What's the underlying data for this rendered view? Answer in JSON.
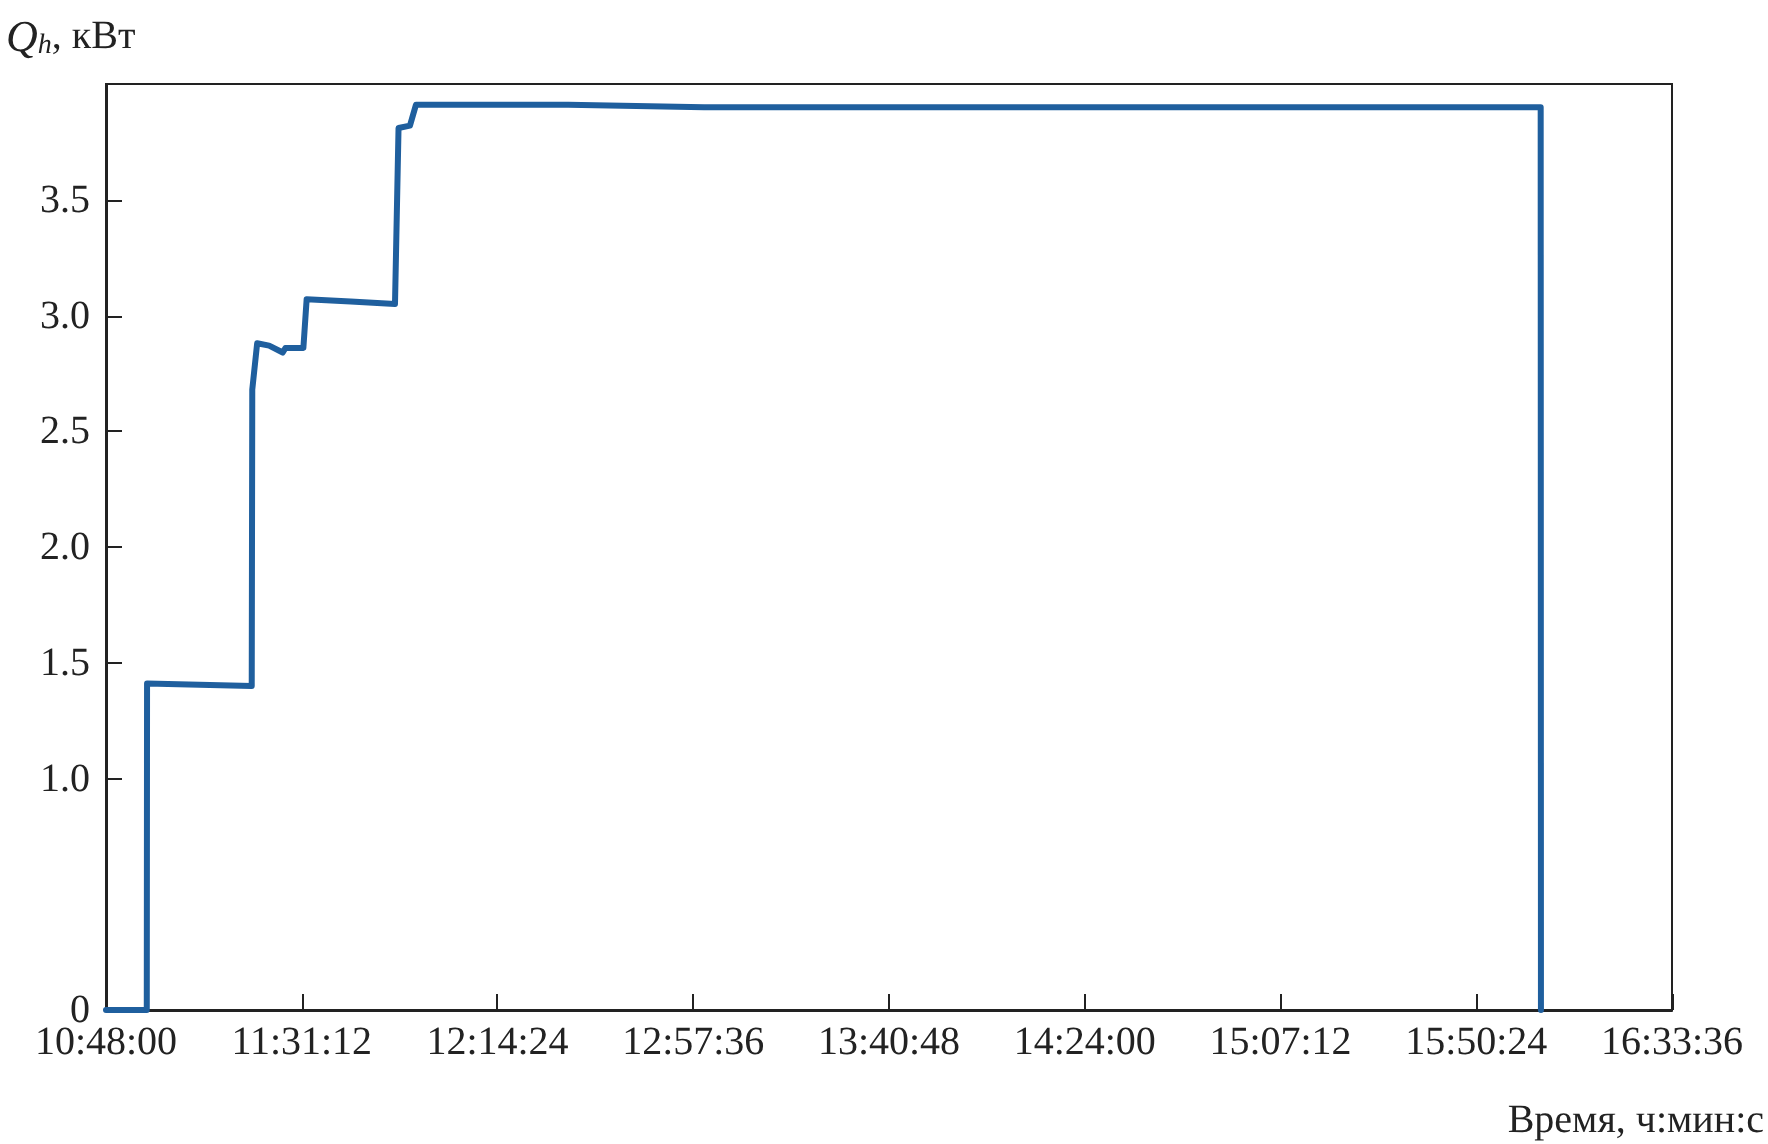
{
  "chart_data": {
    "type": "line",
    "ylabel": "Q$_{h}$, кВт",
    "xlabel": "Время, ч:мин:с",
    "x": [
      10.8,
      10.95,
      10.951,
      11.336,
      11.338,
      11.356,
      11.4,
      11.45,
      11.46,
      11.526,
      11.538,
      11.7,
      11.863,
      11.876,
      11.918,
      11.94,
      12.5,
      13.0,
      14.0,
      15.0,
      16.077,
      16.078
    ],
    "series": [
      {
        "color": "#1f5f9e",
        "values": [
          0,
          0,
          1.41,
          1.4,
          2.68,
          2.88,
          2.87,
          2.84,
          2.86,
          2.86,
          3.07,
          3.06,
          3.05,
          3.81,
          3.82,
          3.91,
          3.91,
          3.9,
          3.9,
          3.9,
          3.9,
          0
        ]
      }
    ],
    "xlim": [
      10.8,
      16.56
    ],
    "xticks": [
      {
        "value": 10.8,
        "label": "10:48:00"
      },
      {
        "value": 11.52,
        "label": "11:31:12"
      },
      {
        "value": 12.24,
        "label": "12:14:24"
      },
      {
        "value": 12.96,
        "label": "12:57:36"
      },
      {
        "value": 13.68,
        "label": "13:40:48"
      },
      {
        "value": 14.4,
        "label": "14:24:00"
      },
      {
        "value": 15.12,
        "label": "15:07:12"
      },
      {
        "value": 15.84,
        "label": "15:50:24"
      },
      {
        "value": 16.56,
        "label": "16:33:36"
      }
    ],
    "ylim": [
      0,
      4.0
    ],
    "yticks": [
      0,
      {
        "value": 1,
        "label": "1.0"
      },
      1.5,
      {
        "value": 2,
        "label": "2.0"
      },
      2.5,
      {
        "value": 3,
        "label": "3.0"
      },
      3.5
    ],
    "grid": false,
    "marker": "none",
    "line_style": "solid"
  }
}
